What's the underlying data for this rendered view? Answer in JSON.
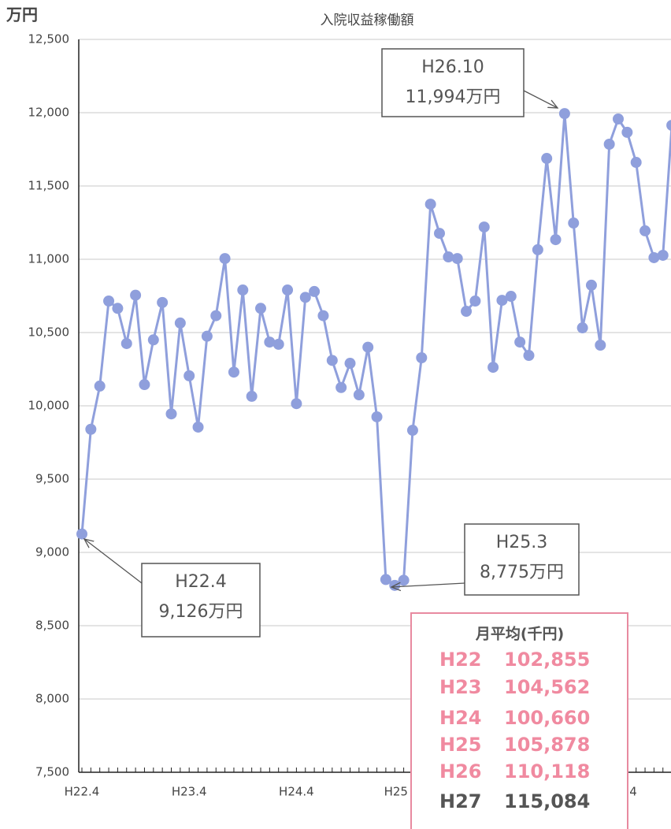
{
  "chart_data": {
    "type": "line",
    "title": "入院収益稼働額",
    "y_unit": "万円",
    "categories": [
      "H22.4",
      null,
      null,
      null,
      null,
      null,
      null,
      null,
      null,
      null,
      null,
      null,
      "H23.4",
      null,
      null,
      null,
      null,
      null,
      null,
      null,
      null,
      null,
      null,
      null,
      "H24.4",
      null,
      null,
      null,
      null,
      null,
      null,
      null,
      null,
      null,
      null,
      null,
      "H25",
      null,
      null,
      null,
      null,
      null,
      null,
      null,
      null,
      null,
      null,
      null,
      null,
      null,
      null,
      null,
      null,
      null,
      null,
      null,
      null,
      null,
      null,
      null,
      "4",
      null,
      null,
      null,
      null,
      null,
      null
    ],
    "series": [
      {
        "color": "#8f9fdc",
        "values": [
          9126,
          9840,
          10135,
          10715,
          10665,
          10425,
          10755,
          10145,
          10450,
          10705,
          9945,
          10565,
          10205,
          9855,
          10475,
          10615,
          11005,
          10230,
          10790,
          10065,
          10665,
          10435,
          10420,
          10790,
          10015,
          10740,
          10780,
          10615,
          10310,
          10125,
          10290,
          10075,
          10400,
          9925,
          8815,
          8775,
          8810,
          9833,
          10328,
          11376,
          11177,
          11016,
          11005,
          10645,
          10715,
          11220,
          10263,
          10720,
          10747,
          10435,
          10344,
          11065,
          11688,
          11134,
          11994,
          11247,
          10532,
          10823,
          10414,
          11785,
          11957,
          11866,
          11661,
          11194,
          11011,
          11027,
          11914
        ]
      }
    ],
    "ylim": [
      7500,
      12500
    ],
    "yticks": [
      {
        "value": 7500,
        "label": "7,500"
      },
      {
        "value": 8000,
        "label": "8,000"
      },
      {
        "value": 8500,
        "label": "8,500"
      },
      {
        "value": 9000,
        "label": "9,000"
      },
      {
        "value": 9500,
        "label": "9,500"
      },
      {
        "value": 10000,
        "label": "10,000"
      },
      {
        "value": 10500,
        "label": "10,500"
      },
      {
        "value": 11000,
        "label": "11,000"
      },
      {
        "value": 11500,
        "label": "11,500"
      },
      {
        "value": 12000,
        "label": "12,000"
      },
      {
        "value": 12500,
        "label": "12,500"
      }
    ],
    "grid": true,
    "annotations": [
      [
        "H26.10",
        "11,994万円"
      ],
      [
        "H25.3",
        "8,775万円"
      ],
      [
        "H22.4",
        "9,126万円"
      ]
    ]
  },
  "summary_table": {
    "title": "月平均(千円)",
    "rows": [
      [
        "H22",
        "102,855"
      ],
      [
        "H23",
        "104,562"
      ],
      [
        "H24",
        "100,660"
      ],
      [
        "H25",
        "105,878"
      ],
      [
        "H26",
        "110,118"
      ],
      [
        "H27",
        "115,084"
      ]
    ]
  }
}
